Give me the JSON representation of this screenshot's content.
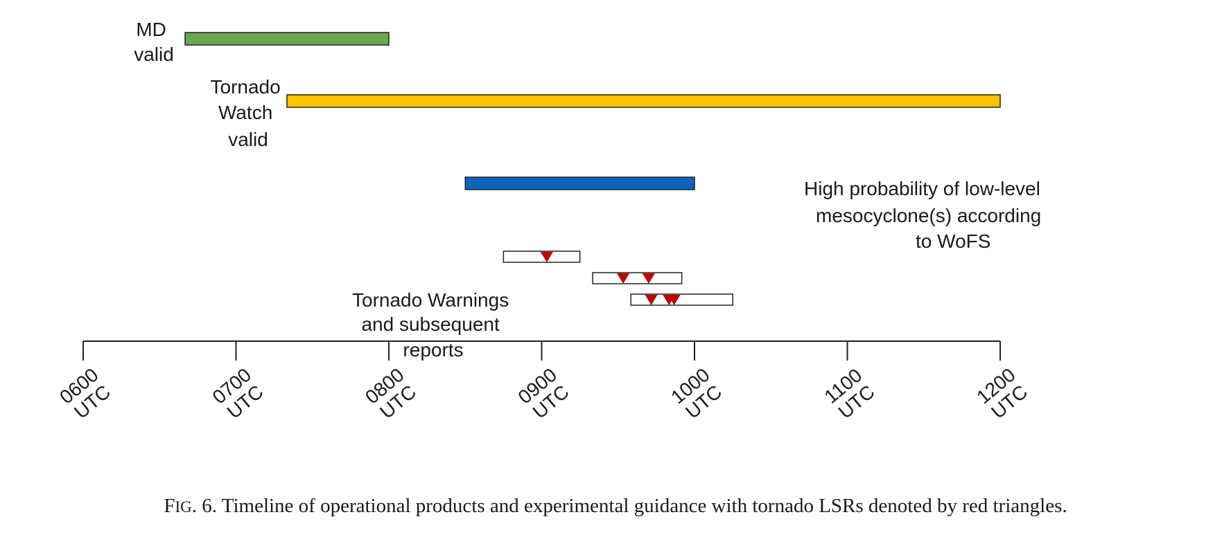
{
  "chart_data": {
    "type": "timeline",
    "time_unit": "UTC",
    "x_range": [
      "0600",
      "1200"
    ],
    "ticks": [
      "0600",
      "0700",
      "0800",
      "0900",
      "1000",
      "1100",
      "1200"
    ],
    "tick_suffix": "UTC",
    "bars": [
      {
        "id": "md",
        "label_lines": [
          "MD",
          "valid"
        ],
        "start": "0640",
        "end": "0800",
        "color": "#6aa84f"
      },
      {
        "id": "watch",
        "label_lines": [
          "Tornado",
          "Watch",
          "valid"
        ],
        "start": "0720",
        "end": "1200",
        "color": "#fec200"
      },
      {
        "id": "wofs",
        "label_lines": [
          "High probability of low-level",
          "mesocyclone(s) according",
          "to WoFS"
        ],
        "start": "0830",
        "end": "1000",
        "color": "#0b64c0"
      }
    ],
    "warnings_label_lines": [
      "Tornado Warnings",
      "and subsequent",
      "reports"
    ],
    "warnings": [
      {
        "start": "0845",
        "end": "0915",
        "reports": [
          "0902"
        ]
      },
      {
        "start": "0920",
        "end": "0955",
        "reports": [
          "0932",
          "0942"
        ]
      },
      {
        "start": "0935",
        "end": "1015",
        "reports": [
          "0943",
          "0950",
          "0952"
        ]
      }
    ],
    "report_marker_color": "#c00000",
    "report_marker": "triangle-down"
  },
  "caption": {
    "first_letter": "F",
    "small_caps": "IG",
    "rest": ". 6. Timeline of operational products and experimental guidance with tornado LSRs denoted by red triangles."
  }
}
